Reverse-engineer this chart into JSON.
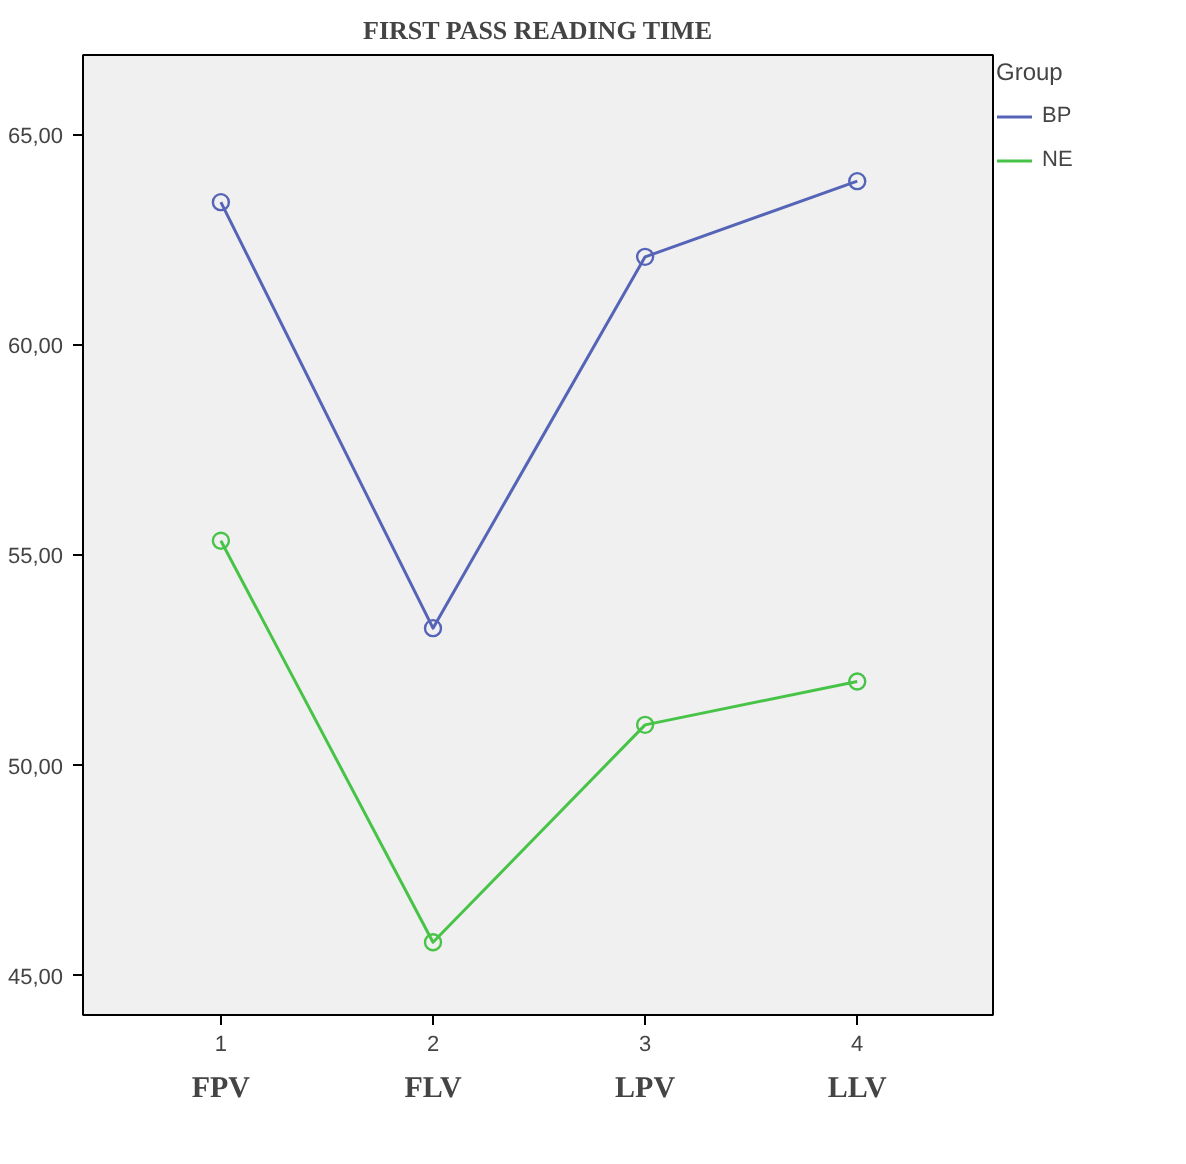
{
  "chart_data": {
    "type": "line",
    "title": "FIRST PASS READING TIME",
    "x": [
      1,
      2,
      3,
      4
    ],
    "xlim": [
      0.35,
      4.64
    ],
    "xticks": [
      1,
      2,
      3,
      4
    ],
    "ylim": [
      44.07,
      66.9
    ],
    "yticks": [
      {
        "value": 45,
        "label": "45,00"
      },
      {
        "value": 50,
        "label": "50,00"
      },
      {
        "value": 55,
        "label": "55,00"
      },
      {
        "value": 60,
        "label": "60,00"
      },
      {
        "value": 65,
        "label": "65,00"
      }
    ],
    "series": [
      {
        "name": "BP",
        "color": "#5664b8",
        "values": [
          63.4,
          53.27,
          62.1,
          63.9
        ]
      },
      {
        "name": "NE",
        "color": "#47c447",
        "values": [
          55.35,
          45.8,
          50.97,
          52.0
        ]
      }
    ],
    "annotations": [
      "FPV",
      "FLV",
      "LPV",
      "LLV"
    ],
    "legend_title": "Group",
    "legend": "right",
    "marker": "circle",
    "grid": false
  }
}
